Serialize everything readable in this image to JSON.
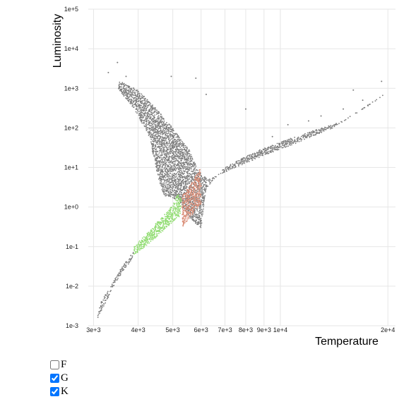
{
  "chart_data": {
    "type": "scatter",
    "xlabel": "Temperature",
    "ylabel": "Luminosity",
    "x_scale": "log",
    "y_scale": "log",
    "xlim": [
      2900,
      21000
    ],
    "ylim": [
      0.001,
      100000
    ],
    "x_ticks": [
      {
        "value": 3000,
        "label": "3e+3"
      },
      {
        "value": 4000,
        "label": "4e+3"
      },
      {
        "value": 5000,
        "label": "5e+3"
      },
      {
        "value": 6000,
        "label": "6e+3"
      },
      {
        "value": 7000,
        "label": "7e+3"
      },
      {
        "value": 8000,
        "label": "8e+3"
      },
      {
        "value": 9000,
        "label": "9e+3"
      },
      {
        "value": 10000,
        "label": "1e+4"
      },
      {
        "value": 20000,
        "label": "2e+4"
      }
    ],
    "y_ticks": [
      {
        "value": 0.001,
        "label": "1e-3"
      },
      {
        "value": 0.01,
        "label": "1e-2"
      },
      {
        "value": 0.1,
        "label": "1e-1"
      },
      {
        "value": 1,
        "label": "1e+0"
      },
      {
        "value": 10,
        "label": "1e+1"
      },
      {
        "value": 100,
        "label": "1e+2"
      },
      {
        "value": 1000,
        "label": "1e+3"
      },
      {
        "value": 10000,
        "label": "1e+4"
      },
      {
        "value": 100000,
        "label": "1e+5"
      }
    ],
    "grid": true,
    "series": [
      {
        "color": "#7a7a7a",
        "regions": [
          {
            "polygon": [
              [
                3050,
                0.0013
              ],
              [
                3250,
                0.004
              ],
              [
                3450,
                0.012
              ],
              [
                3700,
                0.03
              ],
              [
                3850,
                0.05
              ],
              [
                3900,
                0.08
              ],
              [
                3600,
                0.03
              ],
              [
                3350,
                0.01
              ],
              [
                3150,
                0.004
              ]
            ]
          },
          {
            "polygon": [
              [
                3550,
                1500
              ],
              [
                4000,
                900
              ],
              [
                4500,
                300
              ],
              [
                5000,
                100
              ],
              [
                5600,
                25
              ],
              [
                5900,
                8
              ],
              [
                6300,
                5
              ],
              [
                7500,
                10
              ],
              [
                9000,
                20
              ],
              [
                11000,
                40
              ],
              [
                14000,
                100
              ],
              [
                18000,
                400
              ],
              [
                19500,
                700
              ],
              [
                15000,
                150
              ],
              [
                11000,
                60
              ],
              [
                8500,
                25
              ],
              [
                7000,
                10
              ],
              [
                6200,
                3
              ],
              [
                6000,
                0.3
              ],
              [
                5600,
                0.5
              ],
              [
                5200,
                1.5
              ],
              [
                4700,
                2
              ],
              [
                4500,
                8
              ],
              [
                4300,
                60
              ],
              [
                3900,
                300
              ],
              [
                3500,
                1000
              ]
            ]
          }
        ],
        "points": [
          [
            3500,
            4500
          ],
          [
            3300,
            2500
          ],
          [
            4950,
            2000
          ],
          [
            5800,
            1800
          ],
          [
            6200,
            700
          ],
          [
            8000,
            300
          ],
          [
            10500,
            120
          ],
          [
            12000,
            150
          ],
          [
            15000,
            300
          ],
          [
            17000,
            500
          ],
          [
            19200,
            1500
          ],
          [
            16000,
            900
          ],
          [
            13000,
            200
          ],
          [
            9500,
            60
          ],
          [
            3700,
            2000
          ]
        ]
      },
      {
        "color": "#8edb6e",
        "regions": [
          {
            "polygon": [
              [
                3880,
                0.06
              ],
              [
                4300,
                0.12
              ],
              [
                4800,
                0.3
              ],
              [
                5250,
                0.6
              ],
              [
                5300,
                1.5
              ],
              [
                5150,
                2.2
              ],
              [
                5000,
                1.1
              ],
              [
                4600,
                0.5
              ],
              [
                4200,
                0.2
              ],
              [
                3900,
                0.1
              ]
            ]
          }
        ]
      },
      {
        "color": "#d98a73",
        "regions": [
          {
            "polygon": [
              [
                5300,
                0.3
              ],
              [
                6000,
                1.2
              ],
              [
                6000,
                10
              ],
              [
                5700,
                5
              ],
              [
                5300,
                1.8
              ]
            ]
          }
        ]
      }
    ]
  },
  "filters": [
    {
      "label": "F",
      "checked": false
    },
    {
      "label": "G",
      "checked": true
    },
    {
      "label": "K",
      "checked": true
    }
  ]
}
